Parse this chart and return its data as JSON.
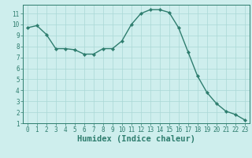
{
  "x": [
    0,
    1,
    2,
    3,
    4,
    5,
    6,
    7,
    8,
    9,
    10,
    11,
    12,
    13,
    14,
    15,
    16,
    17,
    18,
    19,
    20,
    21,
    22,
    23
  ],
  "y": [
    9.7,
    9.9,
    9.1,
    7.8,
    7.8,
    7.7,
    7.3,
    7.3,
    7.8,
    7.8,
    8.5,
    10.0,
    11.0,
    11.35,
    11.35,
    11.1,
    9.7,
    7.5,
    5.3,
    3.8,
    2.8,
    2.1,
    1.8,
    1.3
  ],
  "line_color": "#2e7d6e",
  "marker": "D",
  "marker_size": 2.2,
  "bg_color": "#ceeeed",
  "grid_color": "#aad8d5",
  "xlabel": "Humidex (Indice chaleur)",
  "ylabel": "",
  "xlim": [
    -0.5,
    23.5
  ],
  "ylim": [
    1,
    11.8
  ],
  "yticks": [
    1,
    2,
    3,
    4,
    5,
    6,
    7,
    8,
    9,
    10,
    11
  ],
  "xticks": [
    0,
    1,
    2,
    3,
    4,
    5,
    6,
    7,
    8,
    9,
    10,
    11,
    12,
    13,
    14,
    15,
    16,
    17,
    18,
    19,
    20,
    21,
    22,
    23
  ],
  "tick_fontsize": 5.5,
  "xlabel_fontsize": 7.5,
  "tick_color": "#2e7d6e",
  "axis_color": "#2e7d6e",
  "line_width": 1.0
}
